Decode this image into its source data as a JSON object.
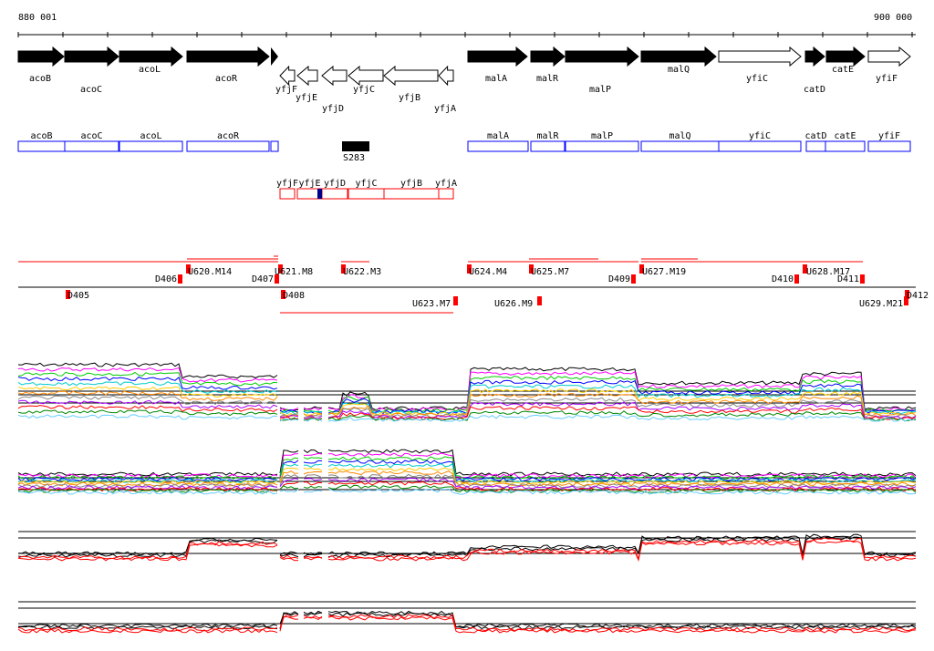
{
  "axis": {
    "start_label": "880 001",
    "end_label": "900 000"
  },
  "genes": [
    "acoB",
    "acoC",
    "acoL",
    "acoR",
    "yfjF",
    "yfjE",
    "yfjD",
    "yfjC",
    "yfjB",
    "yfjA",
    "malA",
    "malR",
    "malP",
    "malQ",
    "yfiC",
    "catD",
    "catE",
    "yfiF"
  ],
  "blue_boxes": [
    "acoB",
    "acoC",
    "acoL",
    "acoR",
    "malA",
    "malR",
    "malP",
    "malQ",
    "yfiC",
    "catD",
    "catE",
    "yfiF"
  ],
  "srna": "S283",
  "red_boxes": [
    "yfjF",
    "yfjE",
    "yfjD",
    "yfjC",
    "yfjB",
    "yfjA"
  ],
  "features": [
    "D405",
    "D406",
    "U620.M14",
    "D407",
    "U621.M8",
    "D408",
    "U622.M3",
    "U623.M7",
    "U624.M4",
    "U625.M7",
    "U626.M9",
    "D409",
    "U627.M19",
    "D410",
    "U628.M17",
    "D411",
    "U629.M21",
    "D412"
  ],
  "colors": {
    "gene_fill": "#000000",
    "blue": "#0000ff",
    "red": "#ff0000"
  }
}
